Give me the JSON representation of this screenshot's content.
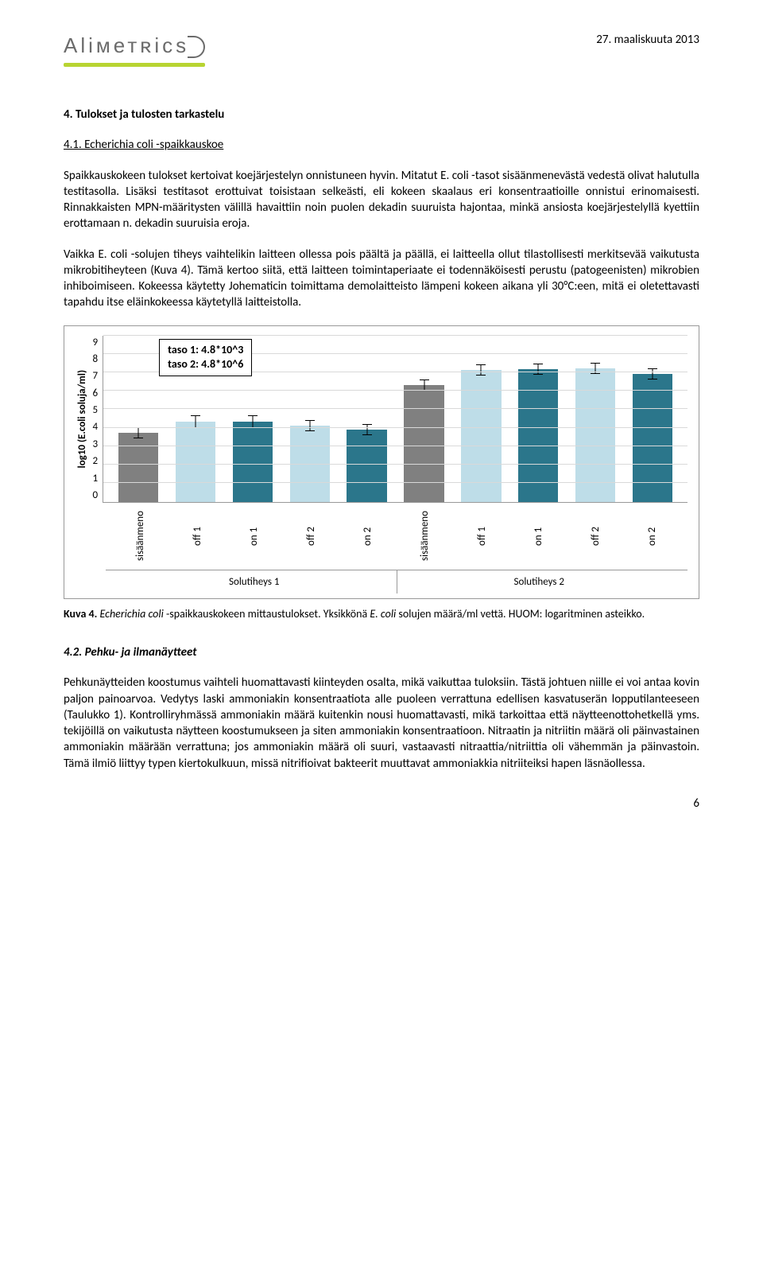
{
  "header": {
    "logo_text": "Aliметʀics",
    "date": "27. maaliskuuta 2013"
  },
  "section": {
    "title": "4. Tulokset ja tulosten tarkastelu",
    "sub1_title": "4.1. Echerichia coli -spaikkauskoe",
    "para1": "Spaikkauskokeen tulokset kertoivat koejärjestelyn onnistuneen hyvin. Mitatut E. coli -tasot sisäänmenevästä vedestä olivat halutulla testitasolla. Lisäksi testitasot erottuivat toisistaan selkeästi, eli kokeen skaalaus eri konsentraatioille onnistui erinomaisesti. Rinnakkaisten MPN-määritysten välillä havaittiin noin puolen dekadin suuruista hajontaa, minkä ansiosta koejärjestelyllä kyettiin erottamaan n. dekadin suuruisia eroja.",
    "para2": "Vaikka E. coli -solujen tiheys vaihtelikin laitteen ollessa pois päältä ja päällä, ei laitteella ollut tilastollisesti merkitsevää vaikutusta mikrobitiheyteen (Kuva 4). Tämä kertoo siitä, että laitteen toimintaperiaate ei todennäköisesti perustu (patogeenisten) mikrobien inhiboimiseen. Kokeessa käytetty Johematicin toimittama demolaitteisto lämpeni kokeen aikana yli 30°C:een, mitä ei oletettavasti tapahdu itse eläinkokeessa käytetyllä laitteistolla."
  },
  "chart": {
    "y_label": "log10 (E.coli soluja/ml)",
    "y_ticks": [
      "9",
      "8",
      "7",
      "6",
      "5",
      "4",
      "3",
      "2",
      "1",
      "0"
    ],
    "ylim_max": 9,
    "legend": {
      "line1": "taso 1:  4.8*10^3",
      "line2": "taso 2:  4.8*10^6"
    },
    "bar_colors": {
      "sisaan": "#808080",
      "off": "#bedde8",
      "on": "#2b768b"
    },
    "bars": [
      {
        "label": "sisäänmeno",
        "value": 3.7,
        "err": 0.3,
        "kind": "sisaan"
      },
      {
        "label": "off 1",
        "value": 4.3,
        "err": 0.35,
        "kind": "off"
      },
      {
        "label": "on 1",
        "value": 4.3,
        "err": 0.35,
        "kind": "on"
      },
      {
        "label": "off 2",
        "value": 4.1,
        "err": 0.3,
        "kind": "off"
      },
      {
        "label": "on 2",
        "value": 3.9,
        "err": 0.3,
        "kind": "on"
      },
      {
        "label": "sisäänmeno",
        "value": 6.3,
        "err": 0.3,
        "kind": "sisaan"
      },
      {
        "label": "off 1",
        "value": 7.1,
        "err": 0.3,
        "kind": "off"
      },
      {
        "label": "on 1",
        "value": 7.15,
        "err": 0.3,
        "kind": "on"
      },
      {
        "label": "off 2",
        "value": 7.2,
        "err": 0.3,
        "kind": "off"
      },
      {
        "label": "on 2",
        "value": 6.9,
        "err": 0.3,
        "kind": "on"
      }
    ],
    "group_labels": [
      "Solutiheys 1",
      "Solutiheys 2"
    ]
  },
  "caption": {
    "prefix": "Kuva 4.",
    "italic1": " Echerichia coli ",
    "mid1": "-spaikkauskokeen mittaustulokset. Yksikkönä ",
    "italic2": "E. coli",
    "tail": " solujen määrä/ml vettä. HUOM: logaritminen asteikko."
  },
  "section2": {
    "title": "4.2. Pehku- ja ilmanäytteet",
    "para": "Pehkunäytteiden koostumus vaihteli huomattavasti kiinteyden osalta, mikä vaikuttaa tuloksiin. Tästä johtuen niille ei voi antaa kovin paljon painoarvoa. Vedytys laski ammoniakin konsentraatiota alle puoleen verrattuna edellisen kasvatuserän lopputilanteeseen (Taulukko 1). Kontrolliryhmässä ammoniakin määrä kuitenkin nousi huomattavasti, mikä tarkoittaa että näytteenottohetkellä yms. tekijöillä on vaikutusta näytteen koostumukseen ja siten ammoniakin konsentraatioon. Nitraatin ja nitriitin määrä oli päinvastainen ammoniakin määrään verrattuna; jos ammoniakin määrä oli suuri, vastaavasti nitraattia/nitriittia oli vähemmän ja päinvastoin. Tämä ilmiö liittyy typen kiertokulkuun, missä nitrifioivat bakteerit muuttavat ammoniakkia nitriiteiksi hapen läsnäollessa."
  },
  "page_number": "6"
}
